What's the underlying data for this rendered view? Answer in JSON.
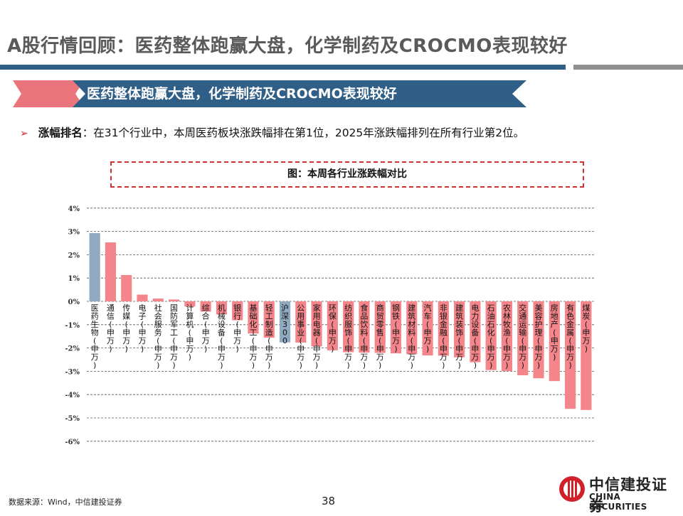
{
  "header": {
    "title": "A股行情回顾：医药整体跑赢大盘，化学制药及CROCMO表现较好"
  },
  "banner": {
    "text": "医药整体跑赢大盘，化学制药及CROCMO表现较好"
  },
  "bullet": {
    "keyword": "涨幅排名",
    "text": "：在31个行业中，本周医药板块涨跌幅排在第1位，2025年涨跌幅排列在所有行业第2位。"
  },
  "figure": {
    "caption": "图：本周各行业涨跌幅对比"
  },
  "chart_data": {
    "type": "bar",
    "categories": [
      "医药生物(申万)",
      "通信(申万)",
      "传媒(申万)",
      "电子(申万)",
      "社会服务(申万)",
      "国防军工(申万)",
      "计算机(申万)",
      "综合(申万)",
      "机械设备(申万)",
      "银行(申万)",
      "基础化工(申万)",
      "轻工制造(申万)",
      "沪深300",
      "公用事业(申万)",
      "家用电器(申万)",
      "环保(申万)",
      "纺织服饰(申万)",
      "食品饮料(申万)",
      "商贸零售(申万)",
      "钢铁(申万)",
      "建筑材料(申万)",
      "汽车(申万)",
      "非银金融(申万)",
      "建筑装饰(申万)",
      "电力设备(申万)",
      "石油石化(申万)",
      "农林牧渔(申万)",
      "交通运输(申万)",
      "美容护理(申万)",
      "房地产(申万)",
      "有色金属(申万)",
      "煤炭(申万)"
    ],
    "values": [
      2.93,
      2.53,
      1.13,
      0.29,
      0.12,
      0.08,
      -0.22,
      -0.44,
      -0.56,
      -0.81,
      -1.38,
      -1.56,
      -1.76,
      -1.77,
      -1.93,
      -2.1,
      -2.18,
      -2.2,
      -2.21,
      -2.23,
      -2.27,
      -2.32,
      -2.33,
      -2.4,
      -2.61,
      -2.95,
      -2.99,
      -3.17,
      -3.3,
      -3.42,
      -4.61,
      -4.66
    ],
    "highlight": [
      "医药生物(申万)",
      "沪深300"
    ],
    "colors": {
      "default": "#f4868b",
      "highlight": "#8fa9c0"
    },
    "ylim": [
      -6,
      4
    ],
    "yticks": [
      4,
      3,
      2,
      1,
      0,
      -1,
      -2,
      -3,
      -4,
      -5,
      -6
    ],
    "ytick_labels": [
      "4%",
      "3%",
      "2%",
      "1%",
      "0%",
      "-1%",
      "-2%",
      "-3%",
      "-4%",
      "-5%",
      "-6%"
    ],
    "grid": true
  },
  "footer": {
    "source": "数据来源：Wind，中信建投证券",
    "page": "38"
  },
  "logo": {
    "cn": "中信建投证券",
    "en": "CHINA SECURITIES"
  }
}
